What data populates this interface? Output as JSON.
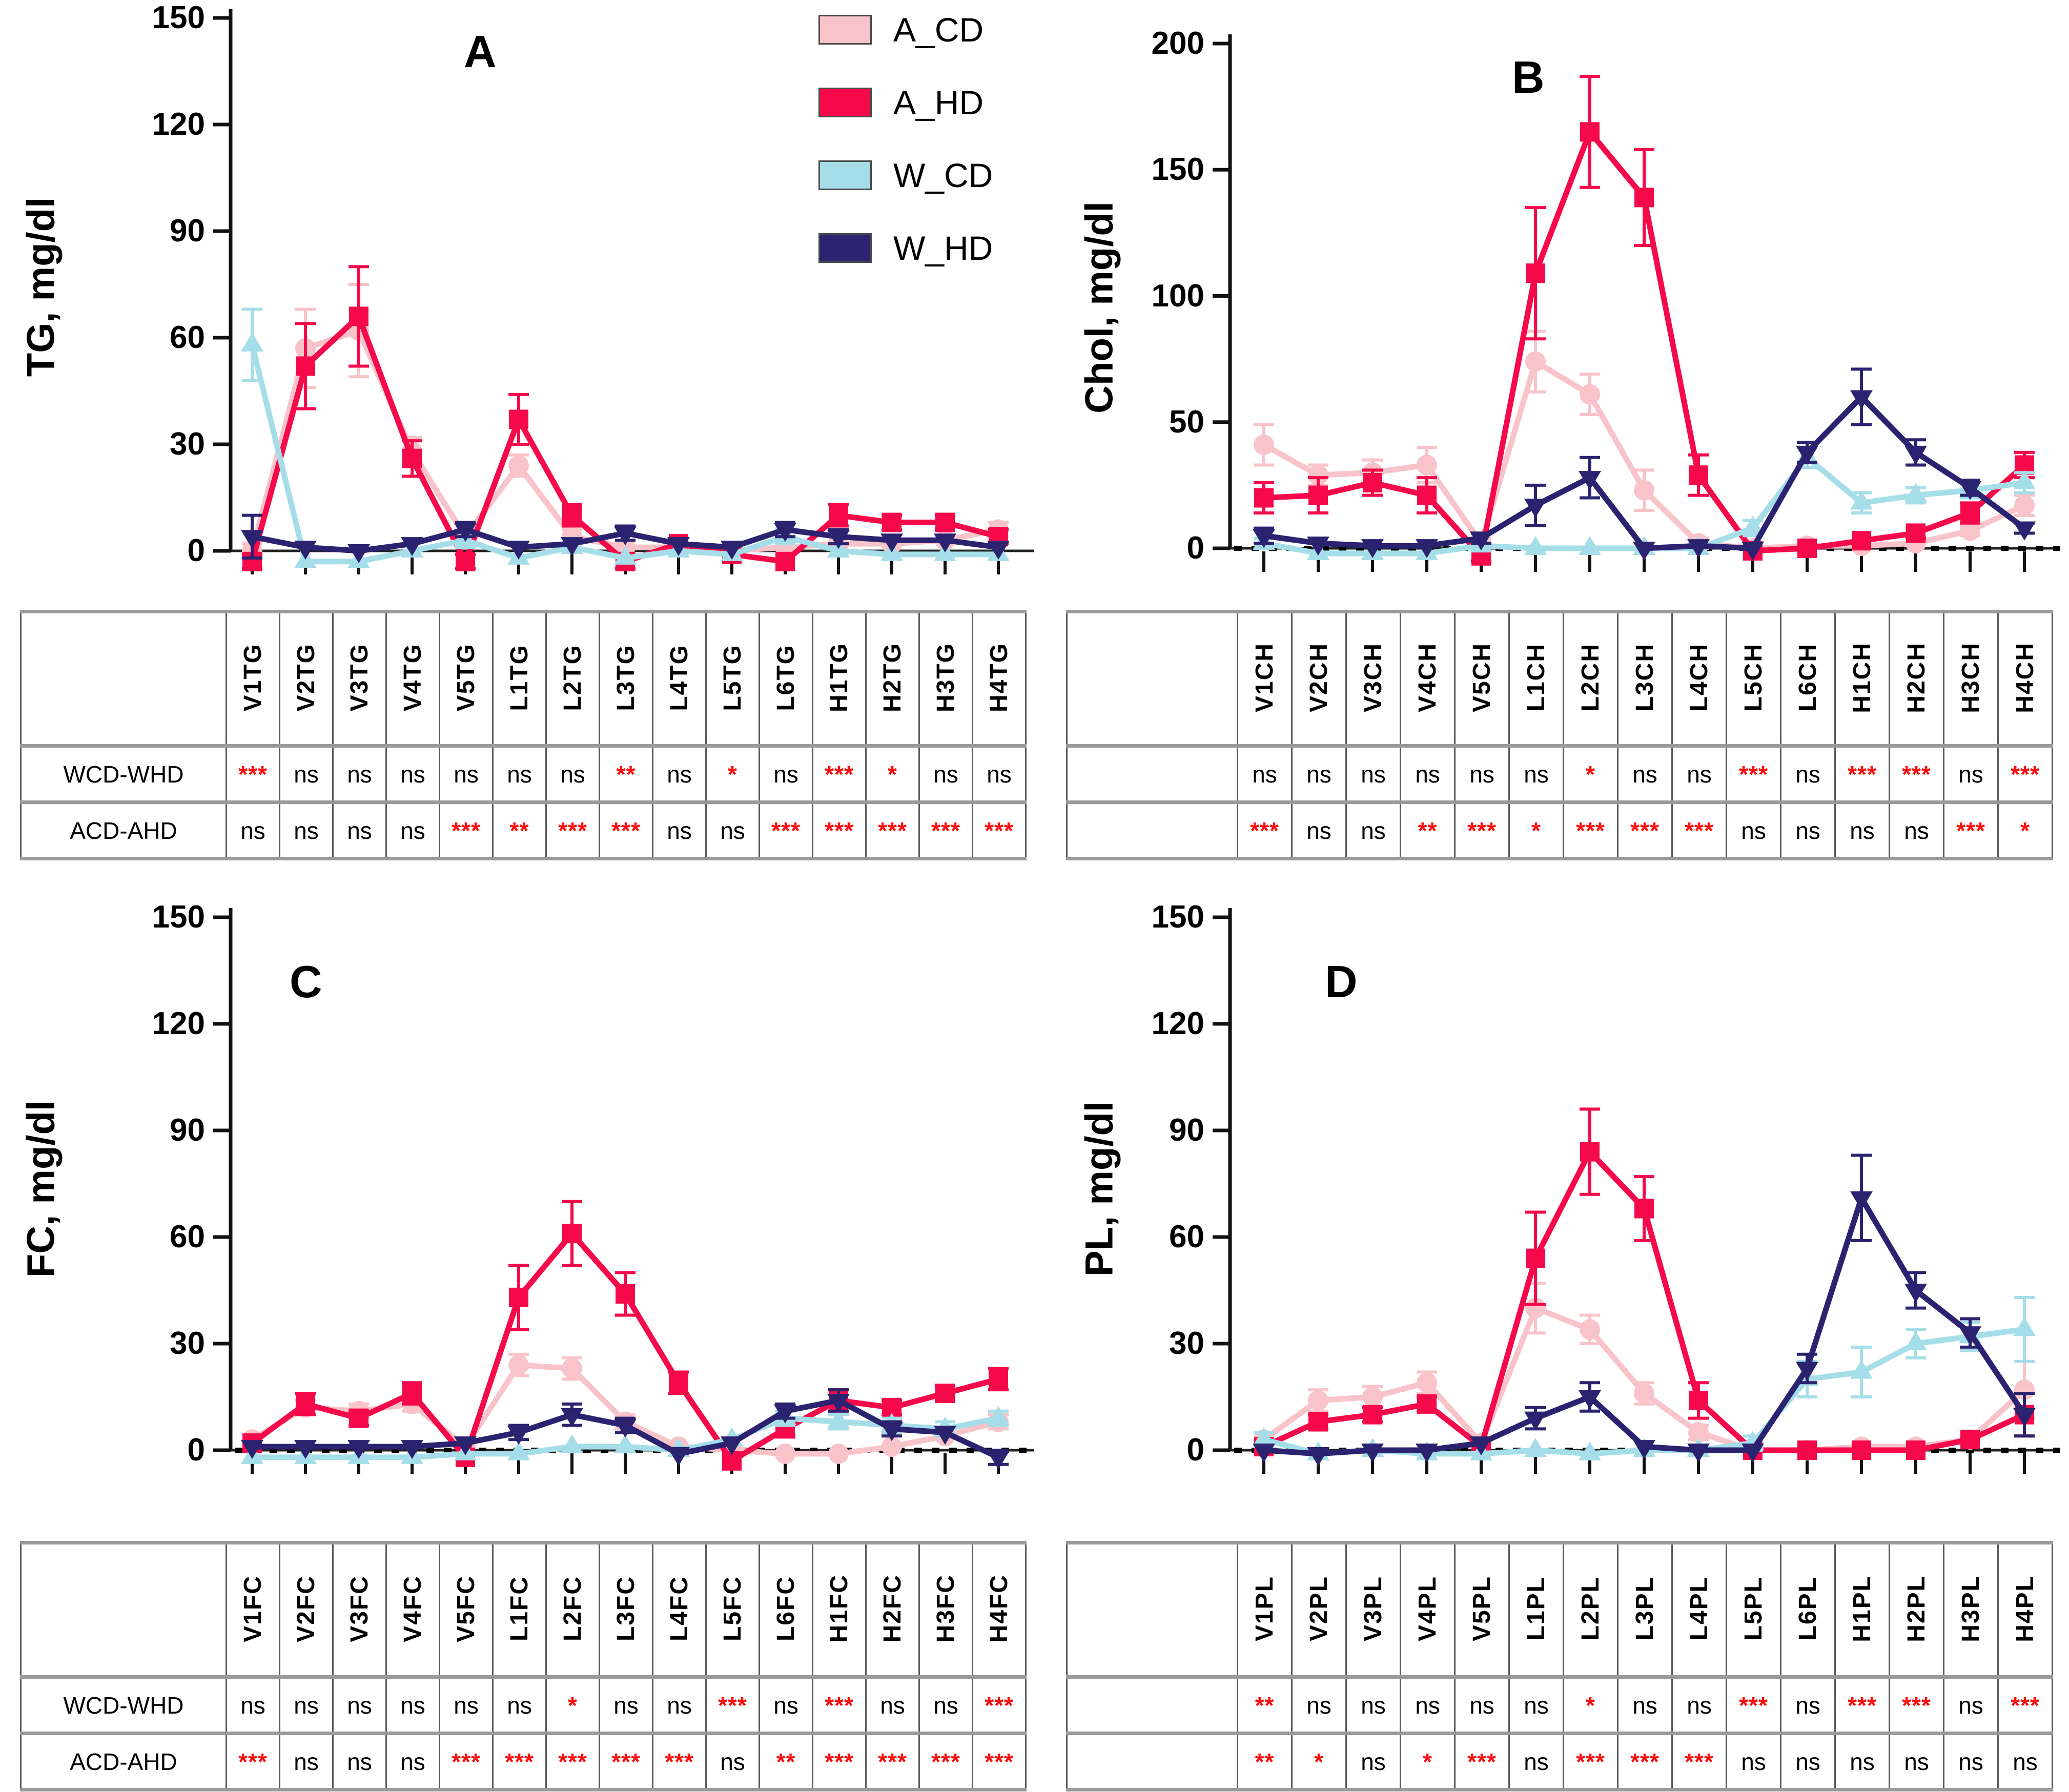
{
  "figure_caption": "",
  "legend": {
    "entries": [
      {
        "label": "A_CD",
        "color": "#F8C3C9"
      },
      {
        "label": "A_HD",
        "color": "#F5094A"
      },
      {
        "label": "W_CD",
        "color": "#A5DEE8"
      },
      {
        "label": "W_HD",
        "color": "#2B2370"
      }
    ]
  },
  "colors": {
    "a_cd_pink": "#F8C3C9",
    "a_hd_red": "#F5094A",
    "w_cd_lightblue": "#A5DEE8",
    "w_hd_navy": "#2B2370",
    "significance_star_red": "#FF0D0D",
    "axis_black": "#111111"
  },
  "chart_data": [
    {
      "id": "a",
      "letter": "A",
      "type": "line",
      "ylabel": "TG, mg/dl",
      "ylim": [
        0,
        150
      ],
      "yticks": [
        0,
        30,
        60,
        90,
        120,
        150
      ],
      "zero_line": "solid",
      "legend_position": "top-center-between-A-and-B",
      "categories": [
        "V1TG",
        "V2TG",
        "V3TG",
        "V4TG",
        "V5TG",
        "L1TG",
        "L2TG",
        "L3TG",
        "L4TG",
        "L5TG",
        "L6TG",
        "H1TG",
        "H2TG",
        "H3TG",
        "H4TG"
      ],
      "series": [
        {
          "name": "A_CD",
          "marker": "circle",
          "color": "#F8C3C9",
          "values": [
            0,
            57,
            62,
            28,
            4,
            24,
            4,
            1,
            1,
            0,
            1,
            2,
            2,
            3,
            6
          ],
          "errors": [
            2,
            11,
            13,
            4,
            2,
            3,
            2,
            1,
            1,
            1,
            1,
            1,
            1,
            1,
            2
          ]
        },
        {
          "name": "A_HD",
          "marker": "square",
          "color": "#F5094A",
          "values": [
            -3,
            52,
            66,
            26,
            -3,
            37,
            10,
            -3,
            2,
            -1,
            -3,
            10,
            8,
            8,
            4
          ],
          "errors": [
            2,
            12,
            14,
            5,
            2,
            7,
            3,
            2,
            1,
            1,
            1,
            3,
            2,
            2,
            2
          ]
        },
        {
          "name": "W_CD",
          "marker": "triangle-up",
          "color": "#A5DEE8",
          "values": [
            58,
            -3,
            -3,
            0,
            3,
            -2,
            1,
            -2,
            0,
            -1,
            4,
            0,
            -1,
            -1,
            -1
          ],
          "errors": [
            10,
            1,
            1,
            1,
            2,
            1,
            1,
            1,
            1,
            1,
            2,
            1,
            1,
            1,
            1
          ]
        },
        {
          "name": "W_HD",
          "marker": "triangle-down",
          "color": "#2B2370",
          "values": [
            4,
            1,
            0,
            2,
            6,
            1,
            2,
            5,
            2,
            1,
            6,
            4,
            3,
            3,
            1
          ],
          "errors": [
            6,
            1,
            1,
            1,
            2,
            1,
            1,
            2,
            1,
            1,
            2,
            2,
            1,
            1,
            1
          ]
        }
      ],
      "table": {
        "show_row_labels": true,
        "row_labels": [
          "WCD-WHD",
          "ACD-AHD"
        ],
        "rows": [
          [
            "***",
            "ns",
            "ns",
            "ns",
            "ns",
            "ns",
            "ns",
            "**",
            "ns",
            "*",
            "ns",
            "***",
            "*",
            "ns",
            "ns"
          ],
          [
            "ns",
            "ns",
            "ns",
            "ns",
            "***",
            "**",
            "***",
            "***",
            "ns",
            "ns",
            "***",
            "***",
            "***",
            "***",
            "***"
          ]
        ]
      }
    },
    {
      "id": "b",
      "letter": "B",
      "type": "line",
      "ylabel": "Chol, mg/dl",
      "ylim": [
        0,
        200
      ],
      "yticks": [
        0,
        50,
        100,
        150,
        200
      ],
      "zero_line": "dotted",
      "categories": [
        "V1CH",
        "V2CH",
        "V3CH",
        "V4CH",
        "V5CH",
        "L1CH",
        "L2CH",
        "L3CH",
        "L4CH",
        "L5CH",
        "L6CH",
        "H1CH",
        "H2CH",
        "H3CH",
        "H4CH"
      ],
      "series": [
        {
          "name": "A_CD",
          "marker": "circle",
          "color": "#F8C3C9",
          "values": [
            41,
            29,
            30,
            33,
            2,
            74,
            61,
            23,
            2,
            0,
            1,
            1,
            2,
            7,
            17
          ],
          "errors": [
            8,
            4,
            5,
            7,
            2,
            12,
            8,
            8,
            2,
            1,
            1,
            1,
            1,
            2,
            4
          ]
        },
        {
          "name": "A_HD",
          "marker": "square",
          "color": "#F5094A",
          "values": [
            20,
            21,
            26,
            21,
            -3,
            109,
            165,
            139,
            29,
            -1,
            0,
            3,
            6,
            14,
            33
          ],
          "errors": [
            6,
            7,
            5,
            7,
            2,
            26,
            22,
            19,
            8,
            1,
            1,
            1,
            2,
            4,
            5
          ]
        },
        {
          "name": "W_CD",
          "marker": "triangle-up",
          "color": "#A5DEE8",
          "values": [
            2,
            -2,
            -2,
            -2,
            1,
            0,
            0,
            0,
            0,
            8,
            36,
            18,
            21,
            23,
            26
          ],
          "errors": [
            2,
            1,
            1,
            1,
            1,
            1,
            1,
            1,
            1,
            3,
            4,
            4,
            3,
            3,
            4
          ]
        },
        {
          "name": "W_HD",
          "marker": "triangle-down",
          "color": "#2B2370",
          "values": [
            5,
            2,
            1,
            1,
            4,
            17,
            28,
            0,
            1,
            0,
            38,
            60,
            38,
            24,
            8
          ],
          "errors": [
            3,
            1,
            1,
            1,
            2,
            8,
            8,
            1,
            1,
            1,
            4,
            11,
            5,
            3,
            2
          ]
        }
      ],
      "table": {
        "show_row_labels": false,
        "row_labels": [
          "",
          ""
        ],
        "rows": [
          [
            "ns",
            "ns",
            "ns",
            "ns",
            "ns",
            "ns",
            "*",
            "ns",
            "ns",
            "***",
            "ns",
            "***",
            "***",
            "ns",
            "***"
          ],
          [
            "***",
            "ns",
            "ns",
            "**",
            "***",
            "*",
            "***",
            "***",
            "***",
            "ns",
            "ns",
            "ns",
            "ns",
            "***",
            "*"
          ]
        ]
      }
    },
    {
      "id": "c",
      "letter": "C",
      "type": "line",
      "ylabel": "FC, mg/dl",
      "ylim": [
        0,
        150
      ],
      "yticks": [
        0,
        30,
        60,
        90,
        120,
        150
      ],
      "zero_line": "dotted",
      "categories": [
        "V1FC",
        "V2FC",
        "V3FC",
        "V4FC",
        "V5FC",
        "L1FC",
        "L2FC",
        "L3FC",
        "L4FC",
        "L5FC",
        "L6FC",
        "H1FC",
        "H2FC",
        "H3FC",
        "H4FC"
      ],
      "series": [
        {
          "name": "A_CD",
          "marker": "circle",
          "color": "#F8C3C9",
          "values": [
            3,
            12,
            11,
            13,
            1,
            24,
            23,
            8,
            1,
            0,
            -1,
            -1,
            1,
            4,
            8
          ],
          "errors": [
            1,
            2,
            2,
            2,
            1,
            3,
            3,
            2,
            1,
            1,
            1,
            1,
            1,
            1,
            2
          ]
        },
        {
          "name": "A_HD",
          "marker": "square",
          "color": "#F5094A",
          "values": [
            2,
            13,
            9,
            16,
            -2,
            43,
            61,
            44,
            19,
            -3,
            6,
            14,
            12,
            16,
            20
          ],
          "errors": [
            1,
            3,
            2,
            3,
            1,
            9,
            9,
            6,
            3,
            1,
            2,
            3,
            2,
            2,
            3
          ]
        },
        {
          "name": "W_CD",
          "marker": "triangle-up",
          "color": "#A5DEE8",
          "values": [
            -2,
            -2,
            -2,
            -2,
            -1,
            -1,
            1,
            1,
            0,
            3,
            9,
            8,
            7,
            6,
            9
          ],
          "errors": [
            1,
            1,
            1,
            1,
            1,
            1,
            1,
            1,
            1,
            1,
            2,
            2,
            2,
            2,
            2
          ]
        },
        {
          "name": "W_HD",
          "marker": "triangle-down",
          "color": "#2B2370",
          "values": [
            1,
            1,
            1,
            1,
            2,
            5,
            10,
            7,
            -1,
            2,
            11,
            14,
            6,
            5,
            -2
          ],
          "errors": [
            1,
            1,
            1,
            1,
            1,
            2,
            3,
            2,
            1,
            1,
            2,
            3,
            2,
            1,
            2
          ]
        }
      ],
      "table": {
        "show_row_labels": true,
        "row_labels": [
          "WCD-WHD",
          "ACD-AHD"
        ],
        "rows": [
          [
            "ns",
            "ns",
            "ns",
            "ns",
            "ns",
            "ns",
            "*",
            "ns",
            "ns",
            "***",
            "ns",
            "***",
            "ns",
            "ns",
            "***"
          ],
          [
            "***",
            "ns",
            "ns",
            "ns",
            "***",
            "***",
            "***",
            "***",
            "***",
            "ns",
            "**",
            "***",
            "***",
            "***",
            "***"
          ]
        ]
      }
    },
    {
      "id": "d",
      "letter": "D",
      "type": "line",
      "ylabel": "PL, mg/dl",
      "ylim": [
        0,
        150
      ],
      "yticks": [
        0,
        30,
        60,
        90,
        120,
        150
      ],
      "zero_line": "dotted",
      "categories": [
        "V1PL",
        "V2PL",
        "V3PL",
        "V4PL",
        "V5PL",
        "L1PL",
        "L2PL",
        "L3PL",
        "L4PL",
        "L5PL",
        "L6PL",
        "H1PL",
        "H2PL",
        "H3PL",
        "H4PL"
      ],
      "series": [
        {
          "name": "A_CD",
          "marker": "circle",
          "color": "#F8C3C9",
          "values": [
            3,
            14,
            15,
            19,
            2,
            40,
            34,
            16,
            5,
            0,
            0,
            1,
            1,
            3,
            17
          ],
          "errors": [
            2,
            3,
            3,
            3,
            1,
            7,
            4,
            3,
            2,
            1,
            1,
            1,
            1,
            1,
            8
          ]
        },
        {
          "name": "A_HD",
          "marker": "square",
          "color": "#F5094A",
          "values": [
            1,
            8,
            10,
            13,
            1,
            54,
            84,
            68,
            14,
            0,
            0,
            0,
            0,
            3,
            10
          ],
          "errors": [
            1,
            2,
            2,
            2,
            1,
            13,
            12,
            9,
            5,
            1,
            1,
            1,
            1,
            1,
            6
          ]
        },
        {
          "name": "W_CD",
          "marker": "triangle-up",
          "color": "#A5DEE8",
          "values": [
            3,
            -1,
            0,
            -1,
            -1,
            0,
            -1,
            0,
            0,
            2,
            20,
            22,
            30,
            32,
            34
          ],
          "errors": [
            2,
            1,
            1,
            1,
            1,
            1,
            1,
            1,
            1,
            2,
            5,
            7,
            4,
            4,
            9
          ]
        },
        {
          "name": "W_HD",
          "marker": "triangle-down",
          "color": "#2B2370",
          "values": [
            0,
            -1,
            0,
            0,
            2,
            9,
            15,
            1,
            0,
            0,
            23,
            71,
            45,
            33,
            10
          ],
          "errors": [
            1,
            1,
            1,
            1,
            1,
            3,
            4,
            1,
            1,
            1,
            4,
            12,
            5,
            4,
            6
          ]
        }
      ],
      "table": {
        "show_row_labels": false,
        "row_labels": [
          "",
          ""
        ],
        "rows": [
          [
            "**",
            "ns",
            "ns",
            "ns",
            "ns",
            "ns",
            "*",
            "ns",
            "ns",
            "***",
            "ns",
            "***",
            "***",
            "ns",
            "***"
          ],
          [
            "**",
            "*",
            "ns",
            "*",
            "***",
            "ns",
            "***",
            "***",
            "***",
            "ns",
            "ns",
            "ns",
            "ns",
            "ns",
            "ns"
          ]
        ]
      }
    }
  ]
}
